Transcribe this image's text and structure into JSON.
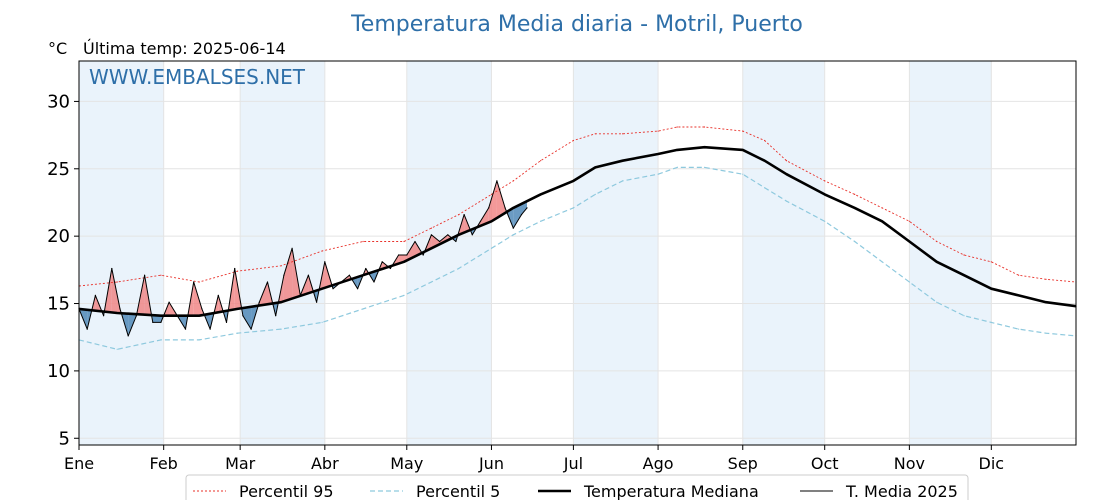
{
  "chart_data": {
    "type": "line",
    "title": "Temperatura Media diaria - Motril, Puerto",
    "unit": "°C",
    "last_temp_label": "Última temp: 2025-06-14",
    "watermark": "WWW.EMBALSES.NET",
    "ylim": [
      4.5,
      33
    ],
    "yticks": [
      5,
      10,
      15,
      20,
      25,
      30
    ],
    "xlim": [
      1,
      366
    ],
    "months": [
      {
        "label": "Ene",
        "day": 1
      },
      {
        "label": "Feb",
        "day": 32
      },
      {
        "label": "Mar",
        "day": 60
      },
      {
        "label": "Abr",
        "day": 91
      },
      {
        "label": "May",
        "day": 121
      },
      {
        "label": "Jun",
        "day": 152
      },
      {
        "label": "Jul",
        "day": 182
      },
      {
        "label": "Ago",
        "day": 213
      },
      {
        "label": "Sep",
        "day": 244
      },
      {
        "label": "Oct",
        "day": 274
      },
      {
        "label": "Nov",
        "day": 305
      },
      {
        "label": "Dic",
        "day": 335
      }
    ],
    "grid": true,
    "legend_position": "bottom",
    "colors": {
      "title": "#2e6fa8",
      "p95": "#e8312a",
      "p5": "#8ec9de",
      "median": "#000000",
      "current": "#000000",
      "above_fill": "#f08080",
      "below_fill": "#4682b4",
      "band": "#eaf3fb"
    },
    "series": [
      {
        "name": "Percentil 95",
        "key": "p95",
        "days": [
          1,
          15,
          31,
          45,
          59,
          75,
          90,
          105,
          120,
          130,
          140,
          152,
          160,
          170,
          182,
          190,
          200,
          213,
          220,
          230,
          244,
          252,
          260,
          274,
          285,
          295,
          305,
          315,
          325,
          335,
          345,
          355,
          366
        ],
        "values": [
          16.3,
          16.6,
          17.1,
          16.6,
          17.4,
          17.8,
          18.9,
          19.6,
          19.6,
          20.6,
          21.6,
          23.1,
          24.1,
          25.6,
          27.1,
          27.6,
          27.6,
          27.8,
          28.1,
          28.1,
          27.8,
          27.1,
          25.6,
          24.1,
          23.1,
          22.1,
          21.1,
          19.6,
          18.6,
          18.1,
          17.1,
          16.8,
          16.6
        ]
      },
      {
        "name": "Percentil 5",
        "key": "p5",
        "days": [
          1,
          15,
          31,
          45,
          59,
          75,
          90,
          105,
          120,
          130,
          140,
          152,
          160,
          170,
          182,
          190,
          200,
          213,
          220,
          230,
          244,
          252,
          260,
          274,
          285,
          295,
          305,
          315,
          325,
          335,
          345,
          355,
          366
        ],
        "values": [
          12.3,
          11.6,
          12.3,
          12.3,
          12.8,
          13.1,
          13.6,
          14.6,
          15.6,
          16.6,
          17.6,
          19.1,
          20.1,
          21.1,
          22.1,
          23.1,
          24.1,
          24.6,
          25.1,
          25.1,
          24.6,
          23.6,
          22.6,
          21.1,
          19.6,
          18.1,
          16.6,
          15.1,
          14.1,
          13.6,
          13.1,
          12.8,
          12.6
        ]
      },
      {
        "name": "Temperatura Mediana",
        "key": "median",
        "days": [
          1,
          15,
          31,
          45,
          59,
          75,
          90,
          105,
          120,
          130,
          140,
          152,
          160,
          170,
          182,
          190,
          200,
          213,
          220,
          230,
          244,
          252,
          260,
          274,
          285,
          295,
          305,
          315,
          325,
          335,
          345,
          355,
          366
        ],
        "values": [
          14.6,
          14.3,
          14.1,
          14.1,
          14.6,
          15.1,
          16.1,
          17.1,
          18.1,
          19.1,
          20.1,
          21.1,
          22.1,
          23.1,
          24.1,
          25.1,
          25.6,
          26.1,
          26.4,
          26.6,
          26.4,
          25.6,
          24.6,
          23.1,
          22.1,
          21.1,
          19.6,
          18.1,
          17.1,
          16.1,
          15.6,
          15.1,
          14.8
        ]
      },
      {
        "name": "T. Media 2025",
        "key": "current",
        "days": [
          1,
          4,
          7,
          10,
          13,
          16,
          19,
          22,
          25,
          28,
          31,
          34,
          37,
          40,
          43,
          46,
          49,
          52,
          55,
          58,
          61,
          64,
          67,
          70,
          73,
          76,
          79,
          82,
          85,
          88,
          91,
          94,
          97,
          100,
          103,
          106,
          109,
          112,
          115,
          118,
          121,
          124,
          127,
          130,
          133,
          136,
          139,
          142,
          145,
          148,
          151,
          154,
          157,
          160,
          163,
          165
        ],
        "values": [
          14.6,
          13.1,
          15.6,
          14.1,
          17.6,
          14.6,
          12.6,
          14.1,
          17.1,
          13.6,
          13.6,
          15.1,
          14.1,
          13.1,
          16.6,
          14.6,
          13.1,
          15.6,
          13.6,
          17.6,
          14.1,
          13.1,
          15.1,
          16.6,
          14.1,
          17.1,
          19.1,
          15.6,
          17.1,
          15.1,
          18.1,
          16.1,
          16.6,
          17.1,
          16.1,
          17.6,
          16.6,
          18.1,
          17.6,
          18.6,
          18.6,
          19.6,
          18.6,
          20.1,
          19.6,
          20.1,
          19.6,
          21.6,
          20.1,
          21.1,
          22.1,
          24.1,
          22.1,
          20.6,
          21.6,
          22.1
        ]
      }
    ]
  }
}
